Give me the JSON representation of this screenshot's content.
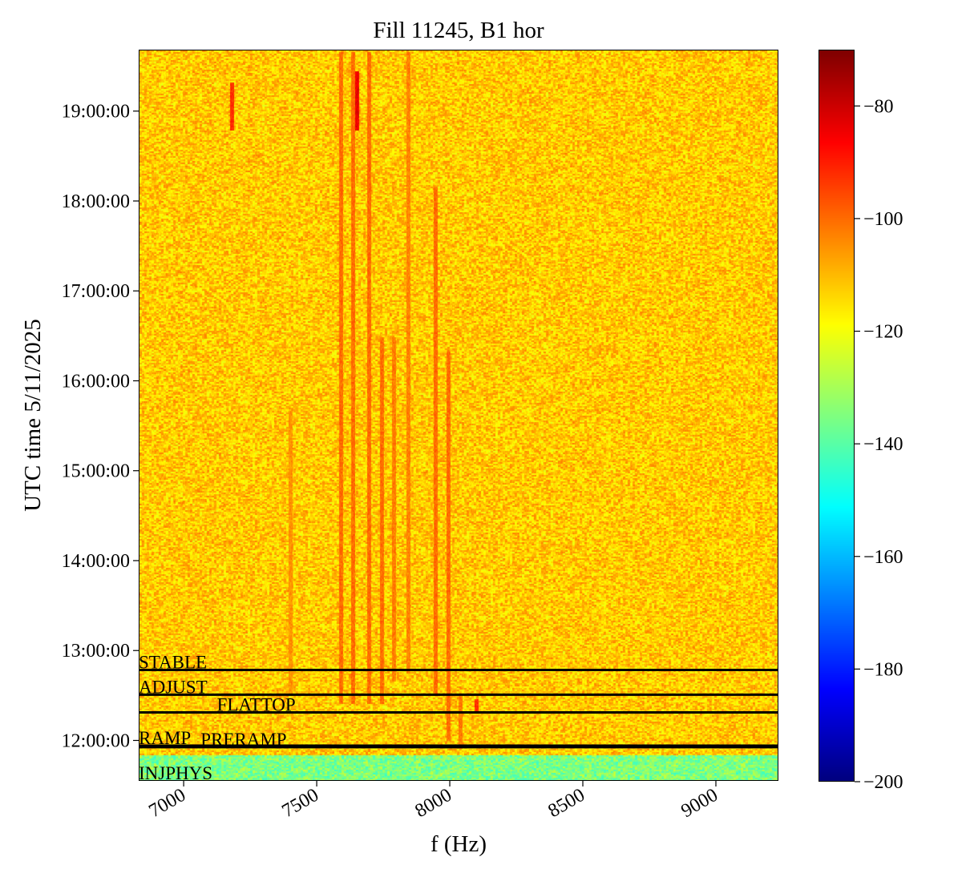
{
  "chart_data": {
    "type": "heatmap",
    "title": "Fill 11245, B1 hor",
    "xlabel": "f (Hz)",
    "ylabel": "UTC time 5/11/2025",
    "xlim": [
      6831,
      9235
    ],
    "ylim": [
      "11:33:00",
      "19:41:00"
    ],
    "xticks": [
      7000,
      7500,
      8000,
      8500,
      9000
    ],
    "xtick_labels": [
      "7000",
      "7500",
      "8000",
      "8500",
      "9000"
    ],
    "yticks": [
      "12:00:00",
      "13:00:00",
      "14:00:00",
      "15:00:00",
      "16:00:00",
      "17:00:00",
      "18:00:00",
      "19:00:00"
    ],
    "colormap": "jet",
    "colorbar": {
      "range": [
        -200,
        -70
      ],
      "ticks": [
        -80,
        -100,
        -120,
        -140,
        -160,
        -180,
        -200
      ],
      "tick_labels": [
        "−80",
        "−100",
        "−120",
        "−140",
        "−160",
        "−180",
        "−200"
      ]
    },
    "background_level": -112,
    "pre_injection_level": -135,
    "beam_modes": [
      {
        "label": "STABLE",
        "time": "12:47:00"
      },
      {
        "label": "ADJUST",
        "time": "12:30:30"
      },
      {
        "label": "FLATTOP",
        "time": "12:18:40"
      },
      {
        "label": "RAMP",
        "time": "11:56:30"
      },
      {
        "label": "PRERAMP",
        "time": "11:55:30"
      },
      {
        "label": "INJPHYS",
        "time": "11:33:00"
      }
    ],
    "spectral_lines": [
      {
        "f": 7400,
        "level": -105,
        "from": "12:30:00",
        "to": "15:40:00"
      },
      {
        "f": 7590,
        "level": -100,
        "from": "12:25:00",
        "to": "19:40:00"
      },
      {
        "f": 7636,
        "level": -100,
        "from": "12:25:00",
        "to": "19:40:00"
      },
      {
        "f": 7651,
        "level": -84,
        "from": "18:48:00",
        "to": "19:27:00"
      },
      {
        "f": 7696,
        "level": -100,
        "from": "12:25:00",
        "to": "19:40:00"
      },
      {
        "f": 7745,
        "level": -100,
        "from": "12:25:00",
        "to": "16:30:00"
      },
      {
        "f": 7790,
        "level": -102,
        "from": "12:40:00",
        "to": "16:30:00"
      },
      {
        "f": 7843,
        "level": -103,
        "from": "12:45:00",
        "to": "19:40:00"
      },
      {
        "f": 7945,
        "level": -100,
        "from": "12:30:00",
        "to": "18:10:00"
      },
      {
        "f": 7994,
        "level": -100,
        "from": "12:00:00",
        "to": "16:20:00"
      },
      {
        "f": 8040,
        "level": -102,
        "from": "11:55:00",
        "to": "12:30:00"
      },
      {
        "f": 8100,
        "level": -92,
        "from": "12:18:00",
        "to": "12:28:00"
      },
      {
        "f": 7180,
        "level": -92,
        "from": "18:48:00",
        "to": "19:20:00"
      }
    ]
  }
}
